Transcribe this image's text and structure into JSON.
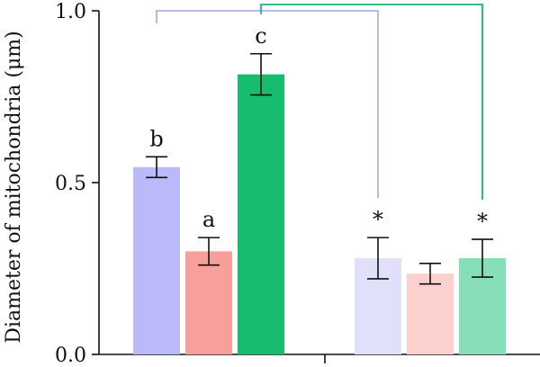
{
  "chart_data": {
    "type": "bar",
    "title": "",
    "xlabel": "",
    "ylabel": "Diameter of mitochondria (μm)",
    "ylim": [
      0,
      1.0
    ],
    "yticks": [
      0.0,
      0.5,
      1.0
    ],
    "ytick_labels": [
      "0.0",
      "0.5",
      "1.0"
    ],
    "grid": false,
    "legend": "none",
    "groups": [
      {
        "bars": [
          {
            "value": 0.545,
            "error": 0.03,
            "label": "b",
            "color": "#babafa"
          },
          {
            "value": 0.3,
            "error": 0.04,
            "label": "a",
            "color": "#f7a09b"
          },
          {
            "value": 0.815,
            "error": 0.06,
            "label": "c",
            "color": "#17bd6f"
          }
        ]
      },
      {
        "bars": [
          {
            "value": 0.28,
            "error": 0.06,
            "label": "*",
            "color": "#e0e0fb"
          },
          {
            "value": 0.235,
            "error": 0.03,
            "label": "",
            "color": "#fbd0cd"
          },
          {
            "value": 0.28,
            "error": 0.055,
            "label": "*",
            "color": "#86dfb7"
          }
        ]
      }
    ],
    "comparisons": [
      {
        "from_group": 0,
        "from_bar": 0,
        "to_group": 1,
        "to_bar": 0,
        "color": "#aeb0f0"
      },
      {
        "from_group": 0,
        "from_bar": 2,
        "to_group": 1,
        "to_bar": 2,
        "color": "#15b877"
      }
    ]
  }
}
